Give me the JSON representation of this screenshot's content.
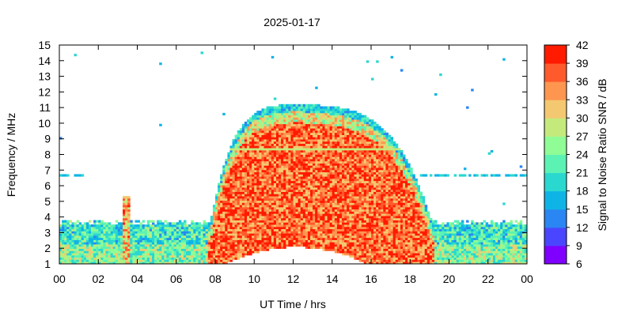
{
  "chart_data": {
    "type": "heatmap",
    "title": "2025-01-17",
    "xlabel": "UT Time / hrs",
    "ylabel": "Frequency / MHz",
    "colorbar_label": "Signal to Noise Ratio SNR / dB",
    "xlim": [
      0,
      24
    ],
    "ylim": [
      1,
      15
    ],
    "x_ticks": [
      "00",
      "02",
      "04",
      "06",
      "08",
      "10",
      "12",
      "14",
      "16",
      "18",
      "20",
      "22",
      "00"
    ],
    "y_ticks": [
      "1",
      "2",
      "3",
      "4",
      "5",
      "6",
      "7",
      "8",
      "9",
      "10",
      "11",
      "12",
      "13",
      "14",
      "15"
    ],
    "colorbar_range": [
      6,
      42
    ],
    "colorbar_ticks": [
      "6",
      "9",
      "12",
      "15",
      "18",
      "21",
      "24",
      "27",
      "30",
      "33",
      "36",
      "39",
      "42"
    ],
    "colorbar_colors": [
      "#7f00ff",
      "#4a46ff",
      "#2a86f2",
      "#0fb4e6",
      "#2ad8d0",
      "#5cf2b4",
      "#8ffc96",
      "#c4ea7c",
      "#f4c870",
      "#ff9650",
      "#ff5a2c",
      "#ff1a00"
    ],
    "grid": false,
    "legend": "colorbar-right",
    "structure": {
      "background_band": {
        "freq_low": 1,
        "freq_high": 3.6,
        "snr_typical": 22
      },
      "daytime_envelope": {
        "start_hr": 7.6,
        "end_hr": 19.2,
        "peak_hr": 12,
        "peak_freq_mhz": 11.2
      },
      "morning_spike": {
        "hr": 3.4,
        "freq_high": 5.3
      },
      "upper_feature": {
        "freq_mhz": 6.6,
        "hours": [
          [
            0,
            1.2
          ],
          [
            18.5,
            23.9
          ]
        ]
      }
    }
  }
}
